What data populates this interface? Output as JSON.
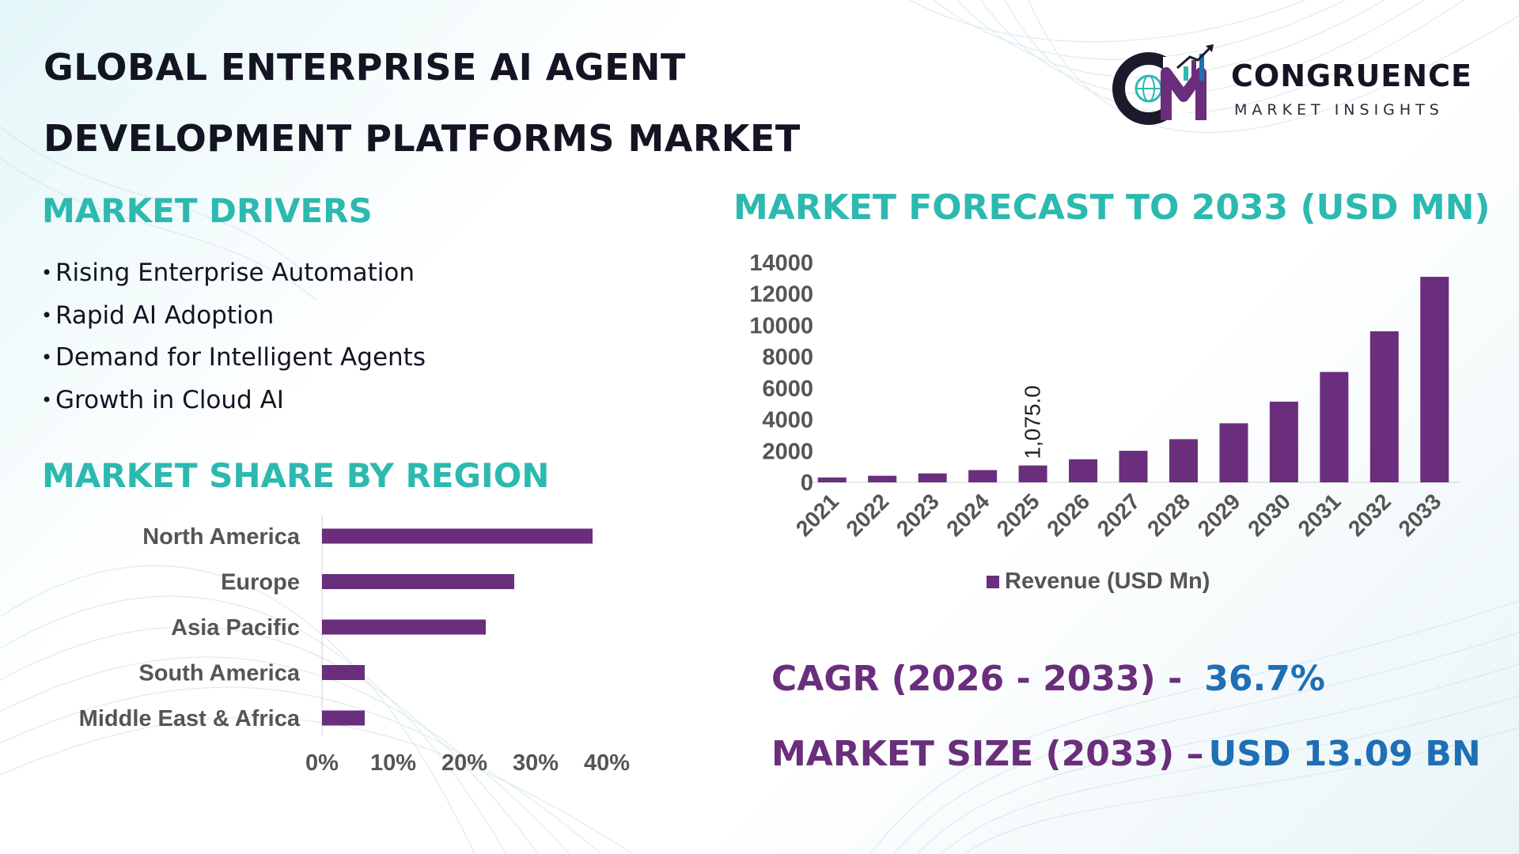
{
  "title": {
    "line1": "GLOBAL ENTERPRISE AI AGENT",
    "line2": "DEVELOPMENT PLATFORMS MARKET"
  },
  "logo": {
    "name": "CONGRUENCE",
    "subtitle": "MARKET INSIGHTS",
    "monogram": "CM"
  },
  "drivers": {
    "heading": "MARKET DRIVERS",
    "bullet": "•",
    "items": [
      "Rising Enterprise Automation",
      "Rapid AI Adoption",
      "Demand for Intelligent Agents",
      "Growth in Cloud AI"
    ]
  },
  "region": {
    "heading": "MARKET SHARE BY REGION"
  },
  "forecast": {
    "heading": "MARKET FORECAST TO 2033 (USD MN)"
  },
  "stats": {
    "cagr_label": "CAGR (2026 - 2033) -",
    "cagr_value": "36.7%",
    "size_label": "MARKET SIZE (2033) –",
    "size_value": "USD 13.09 BN"
  },
  "colors": {
    "bar": "#6a2e7c",
    "heading": "#2cb9b0",
    "stat_label": "#6a2e7c",
    "stat_value": "#1f6fb4",
    "axis_text": "#555555"
  },
  "chart_data": [
    {
      "type": "bar",
      "orientation": "horizontal",
      "categories": [
        "North America",
        "Europe",
        "Asia Pacific",
        "South America",
        "Middle East & Africa"
      ],
      "values": [
        38,
        27,
        23,
        6,
        6
      ],
      "xlim": [
        0,
        40
      ],
      "xticks": [
        "0%",
        "10%",
        "20%",
        "30%",
        "40%"
      ],
      "grid": false,
      "legend": "none"
    },
    {
      "type": "bar",
      "categories": [
        "2021",
        "2022",
        "2023",
        "2024",
        "2025",
        "2026",
        "2027",
        "2028",
        "2029",
        "2030",
        "2031",
        "2032",
        "2033"
      ],
      "series": [
        {
          "name": "Revenue (USD Mn)",
          "values": [
            310,
            420,
            570,
            780,
            1075.0,
            1470,
            2010,
            2750,
            3760,
            5140,
            7030,
            9620,
            13090
          ]
        }
      ],
      "data_labels": [
        {
          "index": 4,
          "text": "1,075.0"
        }
      ],
      "ylim": [
        0,
        14000
      ],
      "yticks": [
        "0",
        "2000",
        "4000",
        "6000",
        "8000",
        "10000",
        "12000",
        "14000"
      ],
      "grid": false,
      "legend": "bottom"
    }
  ]
}
